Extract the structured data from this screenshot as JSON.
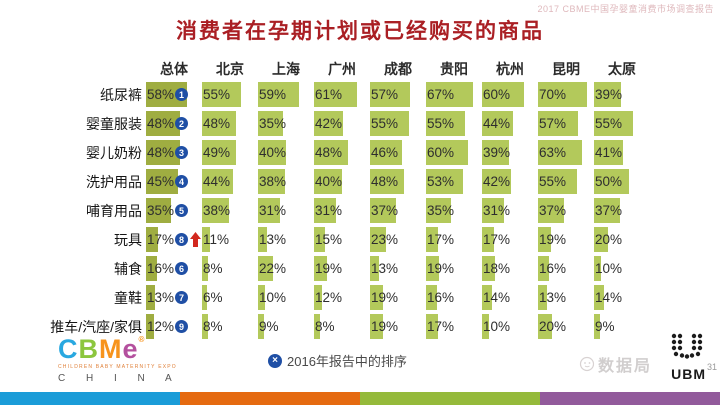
{
  "report_watermark": "2017 CBME中国孕婴童消费市场调查报告",
  "title": "消费者在孕期计划或已经购买的商品",
  "table": {
    "columns": [
      "总体",
      "北京",
      "上海",
      "广州",
      "成都",
      "贵阳",
      "杭州",
      "昆明",
      "太原"
    ],
    "rows": [
      {
        "label": "纸尿裤",
        "overall": 58,
        "rank": "1",
        "arrow": false,
        "values": [
          55,
          59,
          61,
          57,
          67,
          60,
          70,
          39
        ]
      },
      {
        "label": "婴童服装",
        "overall": 48,
        "rank": "2",
        "arrow": false,
        "values": [
          48,
          35,
          42,
          55,
          55,
          44,
          57,
          55
        ]
      },
      {
        "label": "婴儿奶粉",
        "overall": 48,
        "rank": "3",
        "arrow": false,
        "values": [
          49,
          40,
          48,
          46,
          60,
          39,
          63,
          41
        ]
      },
      {
        "label": "洗护用品",
        "overall": 45,
        "rank": "4",
        "arrow": false,
        "values": [
          44,
          38,
          40,
          48,
          53,
          42,
          55,
          50
        ]
      },
      {
        "label": "哺育用品",
        "overall": 35,
        "rank": "5",
        "arrow": false,
        "values": [
          38,
          31,
          31,
          37,
          35,
          31,
          37,
          37
        ]
      },
      {
        "label": "玩具",
        "overall": 17,
        "rank": "8",
        "arrow": true,
        "values": [
          11,
          13,
          15,
          23,
          17,
          17,
          19,
          20
        ]
      },
      {
        "label": "辅食",
        "overall": 16,
        "rank": "6",
        "arrow": false,
        "values": [
          8,
          22,
          19,
          13,
          19,
          18,
          16,
          10
        ]
      },
      {
        "label": "童鞋",
        "overall": 13,
        "rank": "7",
        "arrow": false,
        "values": [
          6,
          10,
          12,
          19,
          16,
          14,
          13,
          14
        ]
      },
      {
        "label": "推车/汽座/家俱",
        "overall": 12,
        "rank": "9",
        "arrow": false,
        "values": [
          8,
          9,
          8,
          19,
          17,
          10,
          20,
          9
        ]
      }
    ]
  },
  "footnote": {
    "icon": "×",
    "text": "2016年报告中的排序"
  },
  "footer": {
    "cbme_letters": [
      "C",
      "B",
      "M",
      "e"
    ],
    "cbme_tagline": "CHILDREN BABY MATERNITY EXPO",
    "cbme_country": "C H I N A",
    "ubm_label": "UBM",
    "bottom_watermark": "数据局",
    "page_number": "31"
  },
  "colors": {
    "title": "#aa1f24",
    "bar_total": "#9fad41",
    "bar_city": "#b3c95b",
    "badge": "#1f4fa5",
    "arrow": "#d2281e",
    "strip": [
      "#1b9cd8",
      "#e56a10",
      "#95ba3b",
      "#925a9b"
    ]
  },
  "chart_data": {
    "type": "bar",
    "title": "消费者在孕期计划或已经购买的商品",
    "unit": "%",
    "categories": [
      "纸尿裤",
      "婴童服装",
      "婴儿奶粉",
      "洗护用品",
      "哺育用品",
      "玩具",
      "辅食",
      "童鞋",
      "推车/汽座/家俱"
    ],
    "series": [
      {
        "name": "总体",
        "values": [
          58,
          48,
          48,
          45,
          35,
          17,
          16,
          13,
          12
        ]
      },
      {
        "name": "北京",
        "values": [
          55,
          48,
          49,
          44,
          38,
          11,
          8,
          6,
          8
        ]
      },
      {
        "name": "上海",
        "values": [
          59,
          35,
          40,
          38,
          31,
          13,
          22,
          10,
          9
        ]
      },
      {
        "name": "广州",
        "values": [
          61,
          42,
          48,
          40,
          31,
          15,
          19,
          12,
          8
        ]
      },
      {
        "name": "成都",
        "values": [
          57,
          55,
          46,
          48,
          37,
          23,
          13,
          19,
          19
        ]
      },
      {
        "name": "贵阳",
        "values": [
          67,
          55,
          60,
          53,
          35,
          17,
          19,
          16,
          17
        ]
      },
      {
        "name": "杭州",
        "values": [
          60,
          44,
          39,
          42,
          31,
          17,
          18,
          14,
          10
        ]
      },
      {
        "name": "昆明",
        "values": [
          70,
          57,
          63,
          55,
          37,
          19,
          16,
          13,
          20
        ]
      },
      {
        "name": "太原",
        "values": [
          39,
          55,
          41,
          50,
          37,
          20,
          10,
          14,
          9
        ]
      }
    ],
    "ranks_2016": [
      1,
      2,
      3,
      4,
      5,
      8,
      6,
      7,
      9
    ],
    "ylim": [
      0,
      100
    ],
    "legend_position": "top-row-headers",
    "annotations": [
      "玩具行带红色上升箭头",
      "× 2016年报告中的排序"
    ]
  }
}
